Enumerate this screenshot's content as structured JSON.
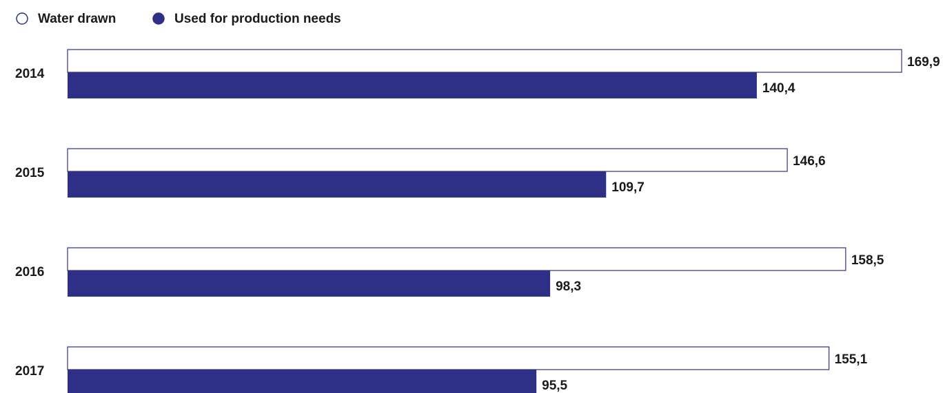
{
  "chart_data": {
    "type": "bar",
    "orientation": "horizontal",
    "categories": [
      "2014",
      "2015",
      "2016",
      "2017"
    ],
    "series": [
      {
        "name": "Water drawn",
        "color": "#ffffff",
        "values": [
          169.9,
          146.6,
          158.5,
          155.1
        ],
        "value_labels": [
          "169,9",
          "146,6",
          "158,5",
          "155,1"
        ]
      },
      {
        "name": "Used for production needs",
        "color": "#2e3087",
        "values": [
          140.4,
          109.7,
          98.3,
          95.5
        ],
        "value_labels": [
          "140,4",
          "109,7",
          "98,3",
          "95,5"
        ]
      }
    ]
  }
}
